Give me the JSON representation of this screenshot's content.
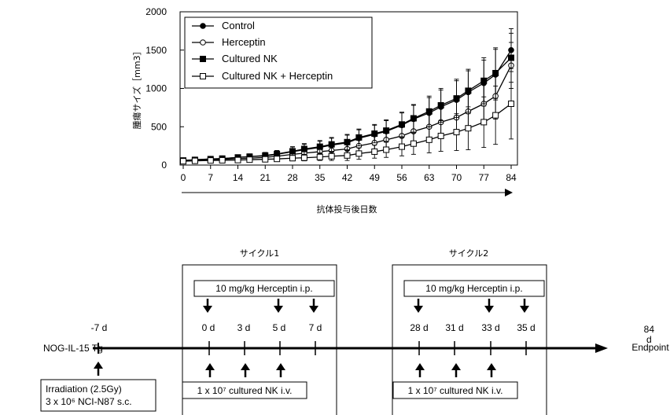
{
  "chart_data": {
    "type": "line",
    "xlabel": "抗体投与後日数",
    "ylabel": "腫瘍サイズ［mm3］",
    "xlim": [
      0,
      84
    ],
    "ylim": [
      0,
      2000
    ],
    "xticks": [
      0,
      7,
      14,
      21,
      28,
      35,
      42,
      49,
      56,
      63,
      70,
      77,
      84
    ],
    "yticks": [
      0,
      500,
      1000,
      1500,
      2000
    ],
    "x": [
      0,
      3,
      7,
      10,
      14,
      17,
      21,
      24,
      28,
      31,
      35,
      38,
      42,
      45,
      49,
      52,
      56,
      59,
      63,
      66,
      70,
      73,
      77,
      80,
      84
    ],
    "legend_position": "top-left",
    "series": [
      {
        "name": "Control",
        "marker": "filled-circle",
        "values": [
          60,
          70,
          80,
          85,
          100,
          110,
          120,
          140,
          175,
          200,
          230,
          260,
          290,
          350,
          400,
          440,
          520,
          600,
          680,
          760,
          850,
          950,
          1070,
          1180,
          1500
        ],
        "errors": [
          15,
          20,
          25,
          25,
          30,
          35,
          40,
          45,
          60,
          70,
          80,
          90,
          100,
          110,
          120,
          140,
          160,
          180,
          200,
          220,
          250,
          280,
          300,
          330,
          280
        ]
      },
      {
        "name": "Herceptin",
        "marker": "open-circle",
        "values": [
          55,
          65,
          70,
          75,
          85,
          90,
          100,
          115,
          140,
          155,
          175,
          190,
          210,
          250,
          290,
          330,
          380,
          440,
          500,
          560,
          620,
          700,
          800,
          900,
          1300
        ],
        "errors": [
          15,
          18,
          20,
          22,
          25,
          30,
          35,
          40,
          50,
          55,
          60,
          70,
          80,
          90,
          100,
          110,
          130,
          150,
          170,
          190,
          210,
          240,
          270,
          300,
          300
        ]
      },
      {
        "name": "Cultured NK",
        "marker": "filled-square",
        "values": [
          60,
          68,
          78,
          85,
          100,
          110,
          125,
          145,
          180,
          210,
          240,
          270,
          300,
          360,
          410,
          450,
          530,
          610,
          700,
          780,
          870,
          970,
          1100,
          1200,
          1400
        ],
        "errors": [
          15,
          20,
          25,
          25,
          30,
          35,
          40,
          45,
          60,
          70,
          80,
          90,
          100,
          110,
          120,
          140,
          160,
          180,
          200,
          220,
          250,
          280,
          300,
          330,
          320
        ]
      },
      {
        "name": "Cultured NK + Herceptin",
        "marker": "open-square",
        "values": [
          50,
          55,
          60,
          62,
          65,
          70,
          75,
          80,
          90,
          95,
          105,
          115,
          125,
          150,
          175,
          200,
          240,
          280,
          330,
          380,
          430,
          480,
          560,
          650,
          800
        ],
        "errors": [
          15,
          15,
          18,
          18,
          20,
          22,
          25,
          28,
          35,
          40,
          45,
          55,
          65,
          75,
          85,
          100,
          120,
          140,
          170,
          200,
          240,
          280,
          330,
          380,
          460
        ]
      }
    ]
  },
  "timeline": {
    "mouse_label": "NOG-IL-15 Tg",
    "start_day": "-7 d",
    "end_day": "84\nd\nEndpoint",
    "cycles": [
      {
        "title": "サイクル1",
        "herceptin": "10 mg/kg Herceptin i.p.",
        "nk": "1 x 10⁷ cultured NK i.v.",
        "days": [
          "0 d",
          "3 d",
          "5 d",
          "7 d"
        ]
      },
      {
        "title": "サイクル2",
        "herceptin": "10 mg/kg Herceptin i.p.",
        "nk": "1 x 10⁷ cultured NK i.v.",
        "days": [
          "28 d",
          "31 d",
          "33 d",
          "35 d"
        ]
      }
    ],
    "irradiation": [
      "Irradiation (2.5Gy)",
      "3 x 10⁶ NCI-N87 s.c."
    ]
  }
}
